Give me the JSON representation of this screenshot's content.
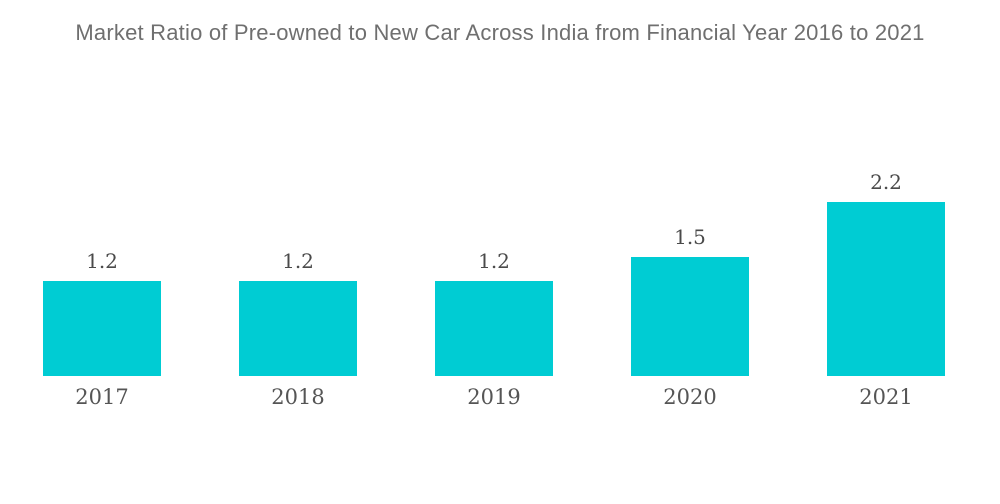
{
  "title": "Market Ratio of Pre-owned to New Car Across India from Financial Year 2016 to 2021",
  "colors": {
    "bar": "#00CCD3",
    "title_text": "#6F6F6F",
    "label_text": "#4A4A4A",
    "background": "#FFFFFF"
  },
  "chart_data": {
    "type": "bar",
    "title": "Market Ratio of Pre-owned to New Car Across India from Financial Year 2016 to 2021",
    "categories": [
      "2017",
      "2018",
      "2019",
      "2020",
      "2021"
    ],
    "values": [
      1.2,
      1.2,
      1.2,
      1.5,
      2.2
    ],
    "value_labels": [
      "1.2",
      "1.2",
      "1.2",
      "1.5",
      "2.2"
    ],
    "xlabel": "",
    "ylabel": "",
    "ylim": [
      0,
      2.2
    ],
    "grid": false,
    "legend": false,
    "axis_lines": false,
    "bar_color": "#00CCD3"
  }
}
